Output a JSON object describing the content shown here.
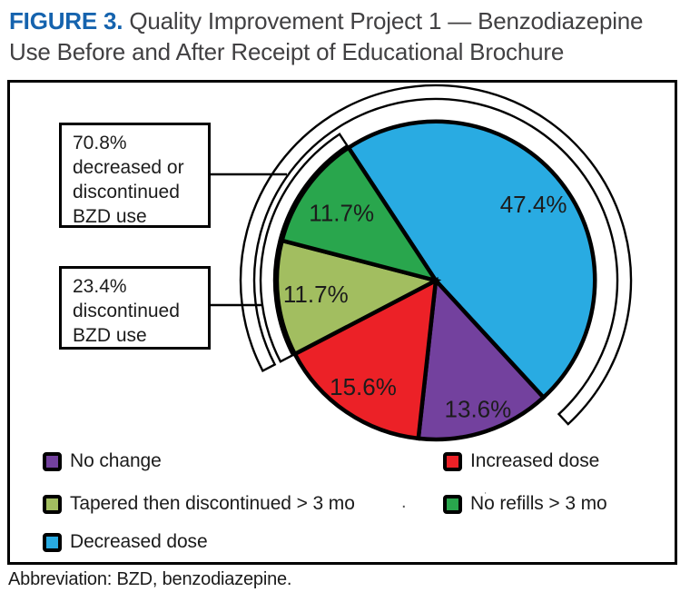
{
  "title": {
    "figure_label": "FIGURE 3.",
    "line1": "Quality Improvement Project 1 — Benzodiazepine",
    "line2": "Use Before and After Receipt of Educational Brochure"
  },
  "chart_data": {
    "type": "pie",
    "title": "Benzodiazepine use before and after receipt of educational brochure",
    "unit": "%",
    "start_angle_deg": 326.7,
    "slices": [
      {
        "label": "Decreased dose",
        "value": 47.4,
        "color": "#29ABE2"
      },
      {
        "label": "No change",
        "value": 13.6,
        "color": "#73419E"
      },
      {
        "label": "Increased dose",
        "value": 15.6,
        "color": "#EC2127"
      },
      {
        "label": "Tapered then discontinued > 3 mo",
        "value": 11.7,
        "color": "#A2BE60"
      },
      {
        "label": "No refills > 3 mo",
        "value": 11.7,
        "color": "#29A64D"
      }
    ],
    "arc_annotations": [
      {
        "text": "70.8% decreased or discontinued BZD use",
        "value": 70.8,
        "band": "outer",
        "covers": [
          "Tapered then discontinued > 3 mo",
          "No refills > 3 mo",
          "Decreased dose"
        ]
      },
      {
        "text": "23.4% discontinued BZD use",
        "value": 23.4,
        "band": "inner",
        "covers": [
          "Tapered then discontinued > 3 mo",
          "No refills > 3 mo"
        ]
      }
    ],
    "legend_position": "bottom"
  },
  "callouts": [
    {
      "lines": [
        "70.8%",
        "decreased or",
        "discontinued",
        "BZD use"
      ]
    },
    {
      "lines": [
        "23.4%",
        "discontinued",
        "BZD use"
      ]
    }
  ],
  "legend": {
    "items": [
      {
        "label": "No change",
        "color": "#73419E"
      },
      {
        "label": "Increased dose",
        "color": "#EC2127"
      },
      {
        "label": "Tapered then discontinued > 3 mo",
        "color": "#A2BE60"
      },
      {
        "label": "No refills > 3 mo",
        "color": "#29A64D"
      },
      {
        "label": "Decreased dose",
        "color": "#29ABE2"
      }
    ]
  },
  "footnote": "Abbreviation: BZD, benzodiazepine.",
  "artifacts": [
    ".",
    "˙"
  ],
  "colors": {
    "figure_label_blue": "#1563AE",
    "title_text": "#414042",
    "outline_black": "#000000"
  }
}
